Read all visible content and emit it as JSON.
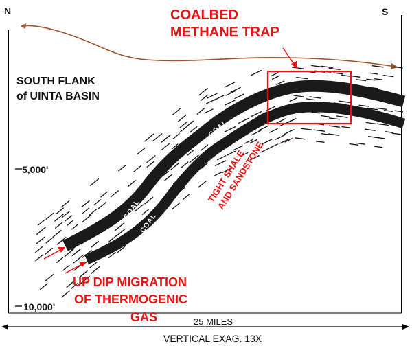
{
  "compass": {
    "north": "N",
    "south": "S"
  },
  "trap_title": {
    "line1": "COALBED",
    "line2": "METHANE TRAP"
  },
  "basin_label": {
    "line1": "SOUTH FLANK",
    "line2": "of UINTA BASIN"
  },
  "depth_ticks": [
    "5,000'",
    "10,000'"
  ],
  "coal_labels": [
    "COAL",
    "COAL",
    "COAL"
  ],
  "rock_label": {
    "line1": "TIGHT SHALE",
    "line2": "AND SANDSTONE"
  },
  "migration_label": {
    "line1": "UP DIP MIGRATION",
    "line2": "OF THERMOGENIC",
    "line3": "GAS"
  },
  "scale": {
    "horizontal": "25 MILES",
    "vertical": "VERTICAL EXAG. 13X"
  },
  "colors": {
    "coal": "#1a1a1a",
    "accent_red": "#ee1111",
    "surface": "#a0522d",
    "shale": "#111111"
  }
}
